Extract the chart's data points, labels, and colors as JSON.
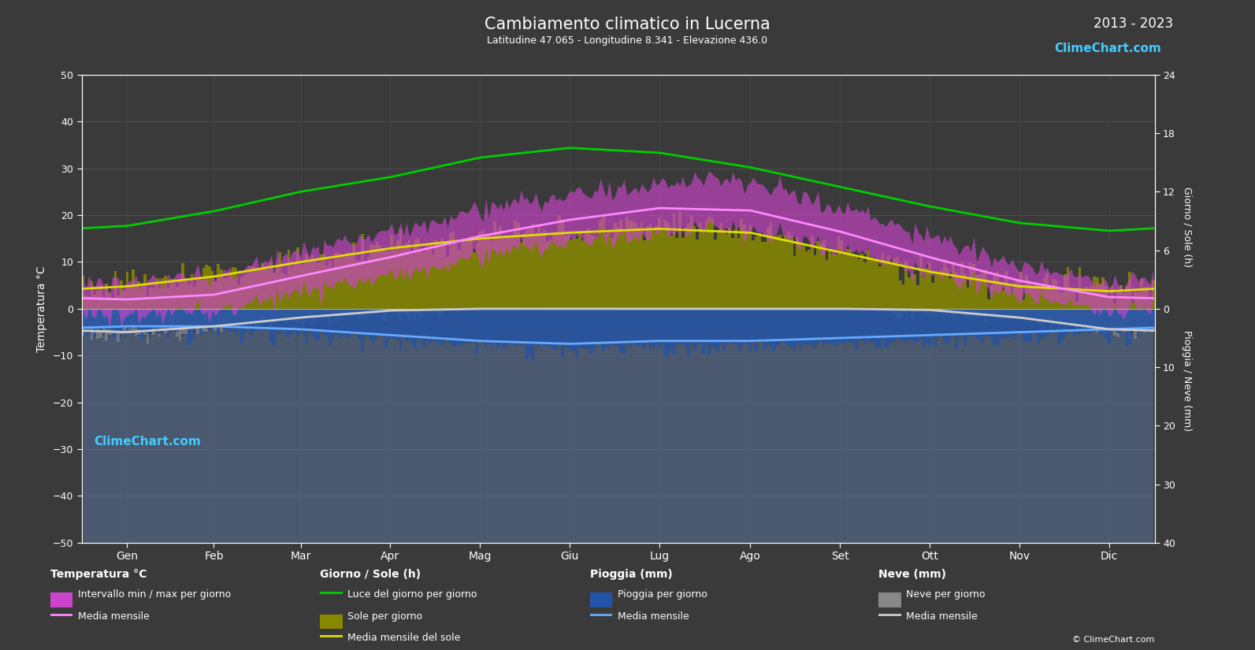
{
  "title": "Cambiamento climatico in Lucerna",
  "subtitle": "Latitudine 47.065 - Longitudine 8.341 - Elevazione 436.0",
  "year_range": "2013 - 2023",
  "bg_color": "#3a3a3a",
  "months": [
    "Gen",
    "Feb",
    "Mar",
    "Apr",
    "Mag",
    "Giu",
    "Lug",
    "Ago",
    "Set",
    "Ott",
    "Nov",
    "Dic"
  ],
  "temp_yticks": [
    -50,
    -40,
    -30,
    -20,
    -10,
    0,
    10,
    20,
    30,
    40,
    50
  ],
  "sun_yticks": [
    0,
    6,
    12,
    18,
    24
  ],
  "rain_yticks": [
    0,
    10,
    20,
    30,
    40
  ],
  "temp_monthly_mean": [
    2.0,
    3.0,
    7.0,
    11.0,
    15.5,
    19.0,
    21.5,
    21.0,
    16.5,
    11.0,
    6.0,
    2.5
  ],
  "temp_monthly_min_mean": [
    -1.5,
    -0.5,
    3.5,
    7.0,
    11.0,
    14.5,
    16.5,
    16.5,
    12.5,
    7.5,
    2.5,
    -0.5
  ],
  "temp_monthly_max_mean": [
    5.5,
    7.0,
    12.0,
    16.5,
    21.0,
    24.5,
    27.0,
    27.0,
    21.5,
    15.5,
    9.0,
    5.5
  ],
  "daylight_hours": [
    8.5,
    10.0,
    12.0,
    13.5,
    15.5,
    16.5,
    16.0,
    14.5,
    12.5,
    10.5,
    8.8,
    8.0
  ],
  "sunshine_hours_daily": [
    2.5,
    3.5,
    5.0,
    6.5,
    7.5,
    8.0,
    8.5,
    8.0,
    6.0,
    4.0,
    2.5,
    2.0
  ],
  "sunshine_monthly_mean": [
    2.3,
    3.3,
    4.8,
    6.2,
    7.2,
    7.8,
    8.2,
    7.8,
    5.8,
    3.8,
    2.3,
    1.8
  ],
  "rain_mm_per_day": [
    3.0,
    3.0,
    3.5,
    4.5,
    5.5,
    6.0,
    5.5,
    5.5,
    5.0,
    4.5,
    4.0,
    3.5
  ],
  "snow_mm_per_day": [
    4.0,
    3.0,
    1.5,
    0.3,
    0.0,
    0.0,
    0.0,
    0.0,
    0.0,
    0.2,
    1.5,
    3.5
  ],
  "colors": {
    "bg": "#3a3a3a",
    "text": "#ffffff",
    "grid": "#555555",
    "temp_fill": "#cc44cc",
    "temp_line": "#ff88ff",
    "daylight_line": "#00cc00",
    "sunshine_fill": "#888800",
    "sunshine_line": "#dddd00",
    "rain_fill": "#2255aa",
    "rain_line": "#66aaff",
    "snow_fill": "#888888",
    "snow_line": "#cccccc",
    "brand": "#44ccff"
  },
  "sun_scale": 2.08333,
  "rain_scale": 1.25,
  "logo_circle_colors": [
    "#cc00cc",
    "#8800ff",
    "#0088ff",
    "#dddd00"
  ]
}
